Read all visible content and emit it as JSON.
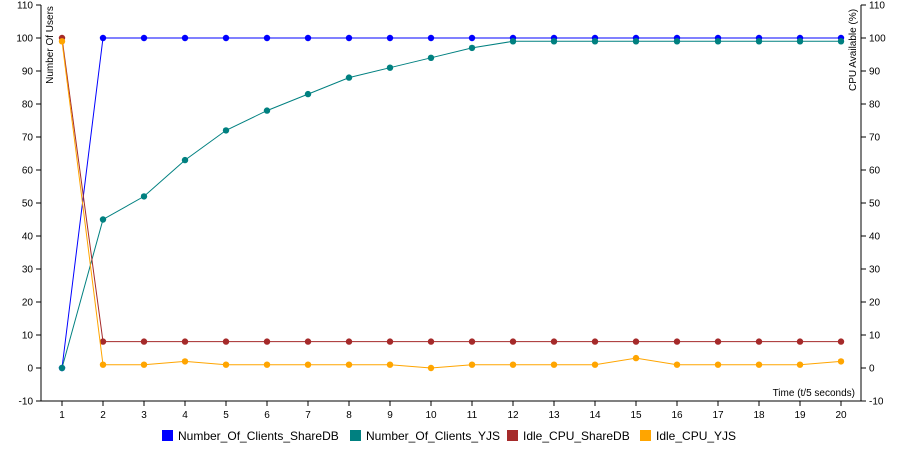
{
  "chart_data": {
    "type": "line",
    "xlabel": "Time (t/5 seconds)",
    "ylabel_left": "Number Of Users",
    "ylabel_right": "CPU Available (%)",
    "x": [
      1,
      2,
      3,
      4,
      5,
      6,
      7,
      8,
      9,
      10,
      11,
      12,
      13,
      14,
      15,
      16,
      17,
      18,
      19,
      20
    ],
    "ylim": [
      -10,
      110
    ],
    "yticks": [
      -10,
      0,
      10,
      20,
      30,
      40,
      50,
      60,
      70,
      80,
      90,
      100,
      110
    ],
    "grid": false,
    "legend_position": "bottom",
    "series": [
      {
        "name": "Number_Of_Clients_ShareDB",
        "color": "#0000ff",
        "axis": "left",
        "values": [
          0,
          100,
          100,
          100,
          100,
          100,
          100,
          100,
          100,
          100,
          100,
          100,
          100,
          100,
          100,
          100,
          100,
          100,
          100,
          100
        ]
      },
      {
        "name": "Number_Of_Clients_YJS",
        "color": "#008080",
        "axis": "left",
        "values": [
          0,
          45,
          52,
          63,
          72,
          78,
          83,
          88,
          91,
          94,
          97,
          99,
          99,
          99,
          99,
          99,
          99,
          99,
          99,
          99
        ]
      },
      {
        "name": "Idle_CPU_ShareDB",
        "color": "#a52a2a",
        "axis": "right",
        "values": [
          100,
          8,
          8,
          8,
          8,
          8,
          8,
          8,
          8,
          8,
          8,
          8,
          8,
          8,
          8,
          8,
          8,
          8,
          8,
          8
        ]
      },
      {
        "name": "Idle_CPU_YJS",
        "color": "#ffa500",
        "axis": "right",
        "values": [
          99,
          1,
          1,
          2,
          1,
          1,
          1,
          1,
          1,
          0,
          1,
          1,
          1,
          1,
          3,
          1,
          1,
          1,
          1,
          2
        ]
      }
    ]
  }
}
